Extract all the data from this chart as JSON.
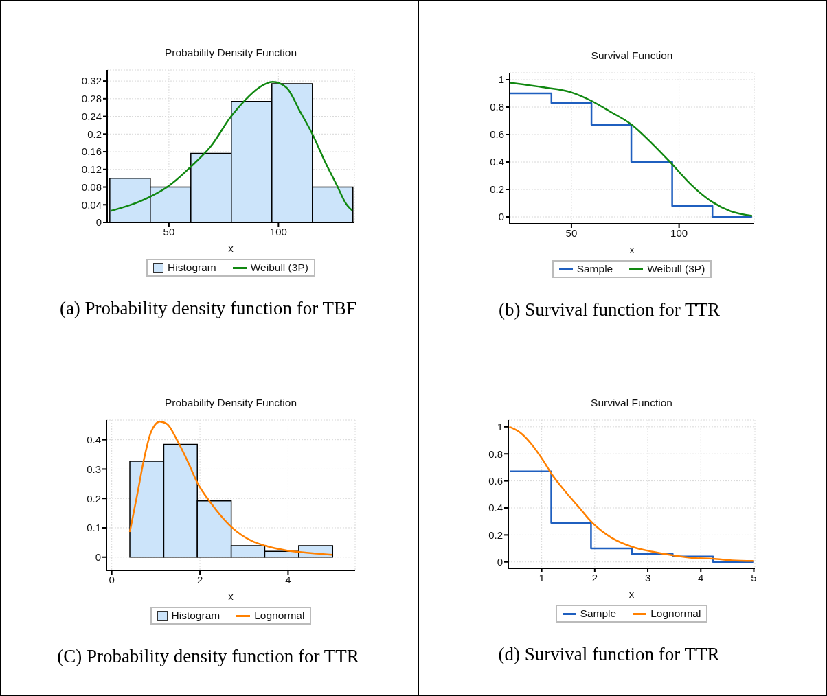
{
  "chart_data": [
    {
      "type": "histogram",
      "title": "Probability Density Function",
      "xlabel": "x",
      "bins": [
        23,
        41.5,
        60,
        78.5,
        97,
        115.5,
        134
      ],
      "xlim": [
        21.8,
        134.7
      ],
      "ylim": [
        0,
        0.345
      ],
      "xticks": [
        50,
        100
      ],
      "yticks": [
        0,
        0.04,
        0.08,
        0.12,
        0.16,
        0.2,
        0.24,
        0.28,
        0.32
      ],
      "grid": true,
      "legend": "bottom",
      "annotations": [
        "(a) Probability density function for TBF"
      ],
      "series": [
        {
          "name": "Histogram",
          "type": "histogram",
          "color": "#cce4fa",
          "values": [
            0.1,
            0.08,
            0.156,
            0.274,
            0.314,
            0.08
          ]
        },
        {
          "name": "Weibull (3P)",
          "type": "line",
          "color": "#118811",
          "x": [
            23.4,
            41.4,
            50.3,
            60,
            69.1,
            78.4,
            84.8,
            91.1,
            97.4,
            103.7,
            110,
            115.6,
            121.4,
            126.7,
            130.9,
            133.7
          ],
          "values": [
            0.026,
            0.058,
            0.084,
            0.126,
            0.172,
            0.24,
            0.277,
            0.305,
            0.318,
            0.305,
            0.25,
            0.199,
            0.136,
            0.084,
            0.042,
            0.027
          ]
        }
      ]
    },
    {
      "type": "line",
      "title": "Survival Function",
      "xlabel": "x",
      "xlim": [
        21.3,
        134.9
      ],
      "ylim": [
        -0.05,
        1.05
      ],
      "xticks": [
        50,
        100
      ],
      "yticks": [
        0,
        0.2,
        0.4,
        0.6,
        0.8,
        1
      ],
      "grid": true,
      "legend": "bottom",
      "annotations": [
        "(b) Survival function for TTR"
      ],
      "series": [
        {
          "name": "Sample",
          "type": "step",
          "color": "#1f5fbf",
          "x": [
            21.5,
            40.7,
            59.3,
            77.8,
            96.8,
            115.5,
            133.9
          ],
          "values": [
            0.9,
            0.83,
            0.67,
            0.4,
            0.08,
            0,
            0
          ]
        },
        {
          "name": "Weibull (3P)",
          "type": "line",
          "color": "#118811",
          "x": [
            21.5,
            36.5,
            50,
            59.3,
            68.2,
            77.8,
            87.6,
            96.8,
            105.7,
            115.5,
            123.9,
            133.9
          ],
          "values": [
            0.978,
            0.945,
            0.907,
            0.845,
            0.765,
            0.674,
            0.532,
            0.383,
            0.233,
            0.108,
            0.042,
            0.008
          ]
        }
      ]
    },
    {
      "type": "histogram",
      "title": "Probability Density Function",
      "xlabel": "x",
      "bins": [
        0.41,
        1.18,
        1.94,
        2.71,
        3.47,
        4.24,
        5.01
      ],
      "xlim": [
        -0.12,
        5.52
      ],
      "ylim": [
        -0.045,
        0.467
      ],
      "xticks": [
        0,
        2,
        4
      ],
      "yticks": [
        0,
        0.1,
        0.2,
        0.3,
        0.4
      ],
      "grid": true,
      "legend": "bottom",
      "annotations": [
        "(C) Probability density function for TTR"
      ],
      "series": [
        {
          "name": "Histogram",
          "type": "histogram",
          "color": "#cce4fa",
          "values": [
            0.327,
            0.384,
            0.192,
            0.039,
            0.02,
            0.039
          ]
        },
        {
          "name": "Lognormal",
          "type": "line",
          "color": "#ff8000",
          "x": [
            0.41,
            0.58,
            0.74,
            0.89,
            1.09,
            1.26,
            1.47,
            1.73,
            1.94,
            2.25,
            2.72,
            3.18,
            3.48,
            3.96,
            4.23,
            4.64,
            5.0
          ],
          "values": [
            0.086,
            0.215,
            0.34,
            0.426,
            0.462,
            0.453,
            0.402,
            0.324,
            0.254,
            0.184,
            0.102,
            0.055,
            0.039,
            0.023,
            0.018,
            0.012,
            0.008
          ]
        }
      ]
    },
    {
      "type": "line",
      "title": "Survival Function",
      "xlabel": "x",
      "xlim": [
        0.37,
        5.02
      ],
      "ylim": [
        -0.047,
        1.05
      ],
      "xticks": [
        1,
        2,
        3,
        4,
        5
      ],
      "yticks": [
        0,
        0.2,
        0.4,
        0.6,
        0.8,
        1
      ],
      "grid": true,
      "legend": "bottom",
      "annotations": [
        "(d) Survival function for TTR"
      ],
      "series": [
        {
          "name": "Sample",
          "type": "step",
          "color": "#1f5fbf",
          "x": [
            0.4,
            1.18,
            1.93,
            2.7,
            3.47,
            4.23,
            4.99
          ],
          "values": [
            0.67,
            0.29,
            0.1,
            0.06,
            0.04,
            0,
            0
          ]
        },
        {
          "name": "Lognormal",
          "type": "line",
          "color": "#ff8000",
          "x": [
            0.39,
            0.59,
            0.8,
            1.02,
            1.18,
            1.45,
            1.71,
            1.93,
            2.31,
            2.7,
            3.09,
            3.47,
            3.86,
            4.23,
            4.59,
            4.99
          ],
          "values": [
            1.0,
            0.959,
            0.875,
            0.756,
            0.655,
            0.519,
            0.401,
            0.3,
            0.181,
            0.113,
            0.076,
            0.049,
            0.029,
            0.024,
            0.012,
            0.007
          ]
        }
      ]
    }
  ]
}
